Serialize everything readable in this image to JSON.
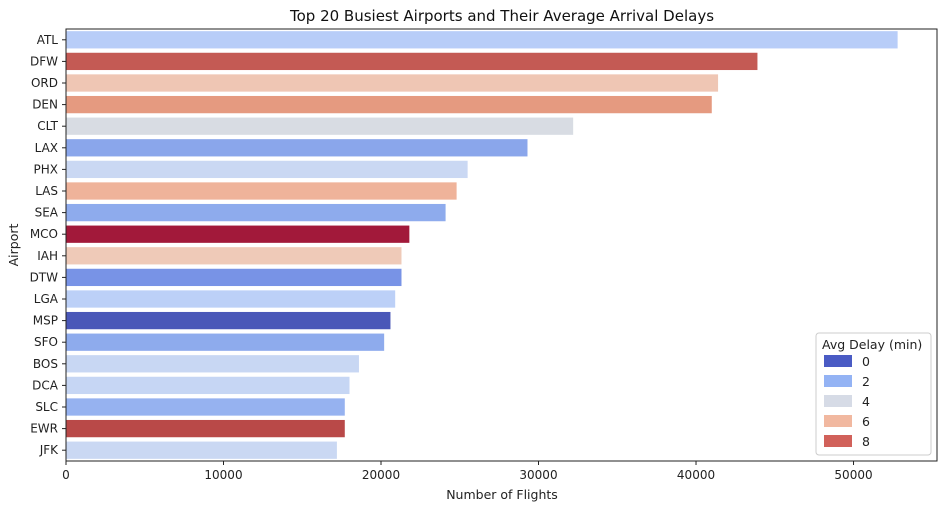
{
  "chart_data": {
    "type": "bar",
    "orientation": "horizontal",
    "title": "Top 20 Busiest Airports and Their Average Arrival Delays",
    "xlabel": "Number of Flights",
    "ylabel": "Airport",
    "xlim": [
      0,
      55300
    ],
    "xticks": [
      0,
      10000,
      20000,
      30000,
      40000,
      50000
    ],
    "grid": false,
    "legend": {
      "title": "Avg Delay (min)",
      "placement": "lower-right",
      "entries": [
        {
          "label": "0",
          "color": "#4a5bc4"
        },
        {
          "label": "2",
          "color": "#94b3f4"
        },
        {
          "label": "4",
          "color": "#d6dbe6"
        },
        {
          "label": "6",
          "color": "#f1b8a0"
        },
        {
          "label": "8",
          "color": "#d1615a"
        }
      ]
    },
    "categories": [
      "ATL",
      "DFW",
      "ORD",
      "DEN",
      "CLT",
      "LAX",
      "PHX",
      "LAS",
      "SEA",
      "MCO",
      "IAH",
      "DTW",
      "LGA",
      "MSP",
      "SFO",
      "BOS",
      "DCA",
      "SLC",
      "EWR",
      "JFK"
    ],
    "values": [
      52800,
      43900,
      41400,
      41000,
      32200,
      29300,
      25500,
      24800,
      24100,
      21800,
      21300,
      21300,
      20900,
      20600,
      20200,
      18600,
      18000,
      17700,
      17700,
      17200
    ],
    "colors": [
      "#b8cdf8",
      "#c45a54",
      "#efc6b4",
      "#e59a80",
      "#d8dce3",
      "#8aa6eb",
      "#cad8f3",
      "#efb39a",
      "#8eabed",
      "#a2193a",
      "#efcab8",
      "#7893e6",
      "#bcd0f7",
      "#4a57b8",
      "#8eabed",
      "#c8d7f3",
      "#c6d6f4",
      "#96b2f0",
      "#b94948",
      "#cad8f3"
    ]
  }
}
